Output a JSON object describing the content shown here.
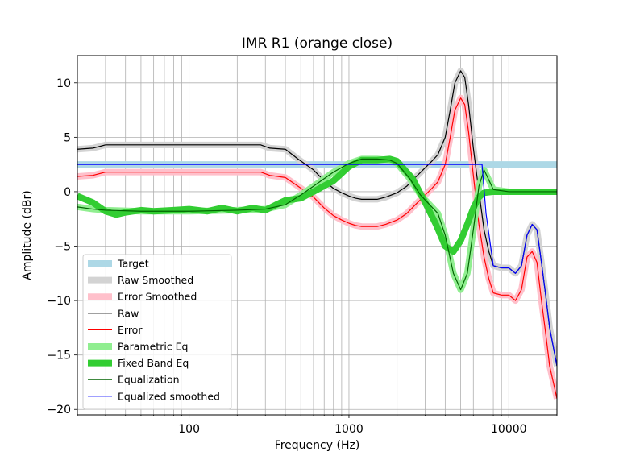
{
  "chart_data": {
    "type": "line",
    "title": "IMR R1 (orange close)",
    "xlabel": "Frequency (Hz)",
    "ylabel": "Amplitude (dBr)",
    "xscale": "log",
    "xlim": [
      20,
      20000
    ],
    "ylim": [
      -20.5,
      12.5
    ],
    "xticks": [
      {
        "value": 100,
        "label": "100"
      },
      {
        "value": 1000,
        "label": "1000"
      },
      {
        "value": 10000,
        "label": "10000"
      }
    ],
    "yticks": [
      {
        "value": 10,
        "label": "10"
      },
      {
        "value": 5,
        "label": "5"
      },
      {
        "value": 0,
        "label": "0"
      },
      {
        "value": -5,
        "label": "−5"
      },
      {
        "value": -10,
        "label": "−10"
      },
      {
        "value": -15,
        "label": "−15"
      },
      {
        "value": -20,
        "label": "−20"
      }
    ],
    "grid": true,
    "legend_position": "lower-left",
    "series": [
      {
        "name": "Target",
        "color": "#add8e6",
        "width": 8,
        "x": [
          20,
          20000
        ],
        "y": [
          2.5,
          2.5
        ]
      },
      {
        "name": "Raw Smoothed",
        "color": "#d3d3d3",
        "width": 8,
        "x": [
          20,
          25,
          30,
          50,
          100,
          200,
          280,
          320,
          400,
          480,
          600,
          700,
          800,
          900,
          1000,
          1100,
          1200,
          1500,
          1700,
          2000,
          2300,
          2600,
          3000,
          3300,
          3600,
          4000,
          4300,
          4600,
          5000,
          5300,
          5600,
          6000,
          6500,
          7000,
          7500,
          8000,
          9000,
          10000,
          11000,
          12000,
          13000,
          14000,
          15000,
          16000,
          17000,
          18000,
          20000
        ],
        "y": [
          3.9,
          4.0,
          4.3,
          4.3,
          4.3,
          4.3,
          4.3,
          4.0,
          3.9,
          3.0,
          2.0,
          1.0,
          0.3,
          -0.1,
          -0.4,
          -0.6,
          -0.7,
          -0.7,
          -0.5,
          -0.1,
          0.5,
          1.3,
          2.2,
          2.8,
          3.4,
          5.0,
          7.5,
          10.0,
          11.1,
          10.5,
          8.0,
          4.0,
          0.0,
          -3.5,
          -5.5,
          -6.8,
          -7.0,
          -7.0,
          -7.5,
          -6.8,
          -4.0,
          -3.0,
          -3.5,
          -6.5,
          -9.5,
          -12.5,
          -16.0
        ]
      },
      {
        "name": "Error Smoothed",
        "color": "#ffc0cb",
        "width": 8,
        "x": [
          20,
          25,
          30,
          50,
          100,
          200,
          280,
          320,
          400,
          480,
          600,
          700,
          800,
          900,
          1000,
          1100,
          1200,
          1500,
          1700,
          2000,
          2300,
          2600,
          3000,
          3300,
          3600,
          4000,
          4300,
          4600,
          5000,
          5300,
          5600,
          6000,
          6500,
          7000,
          7500,
          8000,
          9000,
          10000,
          11000,
          12000,
          13000,
          14000,
          15000,
          16000,
          17000,
          18000,
          20000
        ],
        "y": [
          1.4,
          1.5,
          1.8,
          1.8,
          1.8,
          1.8,
          1.8,
          1.5,
          1.3,
          0.5,
          -0.5,
          -1.5,
          -2.2,
          -2.6,
          -2.9,
          -3.1,
          -3.2,
          -3.2,
          -3.0,
          -2.6,
          -2.0,
          -1.2,
          -0.3,
          0.3,
          0.9,
          2.5,
          5.0,
          7.5,
          8.6,
          8.0,
          5.5,
          1.5,
          -3.0,
          -6.0,
          -8.0,
          -9.3,
          -9.5,
          -9.5,
          -10.0,
          -9.0,
          -6.0,
          -5.5,
          -6.5,
          -10.0,
          -13.0,
          -16.0,
          -19.0
        ]
      },
      {
        "name": "Raw",
        "color": "#000000",
        "width": 1.2,
        "x": [
          20,
          25,
          30,
          50,
          100,
          200,
          280,
          320,
          400,
          480,
          600,
          700,
          800,
          900,
          1000,
          1100,
          1200,
          1500,
          1700,
          2000,
          2300,
          2600,
          3000,
          3300,
          3600,
          4000,
          4300,
          4600,
          5000,
          5300,
          5600,
          6000,
          6500,
          7000,
          7500,
          8000,
          9000,
          10000,
          11000,
          12000,
          13000,
          14000,
          15000,
          16000,
          17000,
          18000,
          20000
        ],
        "y": [
          3.9,
          4.0,
          4.3,
          4.3,
          4.3,
          4.3,
          4.3,
          4.0,
          3.9,
          3.0,
          2.0,
          1.0,
          0.3,
          -0.1,
          -0.4,
          -0.6,
          -0.7,
          -0.7,
          -0.5,
          -0.1,
          0.5,
          1.3,
          2.2,
          2.8,
          3.4,
          5.0,
          7.5,
          10.0,
          11.1,
          10.5,
          8.0,
          4.0,
          0.0,
          -3.5,
          -5.5,
          -6.8,
          -7.0,
          -7.0,
          -7.5,
          -6.8,
          -4.0,
          -3.0,
          -3.5,
          -6.5,
          -9.5,
          -12.5,
          -16.0
        ]
      },
      {
        "name": "Error",
        "color": "#ff0000",
        "width": 1.2,
        "x": [
          20,
          25,
          30,
          50,
          100,
          200,
          280,
          320,
          400,
          480,
          600,
          700,
          800,
          900,
          1000,
          1100,
          1200,
          1500,
          1700,
          2000,
          2300,
          2600,
          3000,
          3300,
          3600,
          4000,
          4300,
          4600,
          5000,
          5300,
          5600,
          6000,
          6500,
          7000,
          7500,
          8000,
          9000,
          10000,
          11000,
          12000,
          13000,
          14000,
          15000,
          16000,
          17000,
          18000,
          20000
        ],
        "y": [
          1.4,
          1.5,
          1.8,
          1.8,
          1.8,
          1.8,
          1.8,
          1.5,
          1.3,
          0.5,
          -0.5,
          -1.5,
          -2.2,
          -2.6,
          -2.9,
          -3.1,
          -3.2,
          -3.2,
          -3.0,
          -2.6,
          -2.0,
          -1.2,
          -0.3,
          0.3,
          0.9,
          2.5,
          5.0,
          7.5,
          8.6,
          8.0,
          5.5,
          1.5,
          -3.0,
          -6.0,
          -8.0,
          -9.3,
          -9.5,
          -9.5,
          -10.0,
          -9.0,
          -6.0,
          -5.5,
          -6.5,
          -10.0,
          -13.0,
          -16.0,
          -19.0
        ]
      },
      {
        "name": "Parametric Eq",
        "color": "#90ee90",
        "width": 8,
        "x": [
          20,
          25,
          30,
          50,
          100,
          200,
          300,
          400,
          500,
          600,
          700,
          800,
          1000,
          1200,
          1500,
          1800,
          2000,
          2400,
          2800,
          3200,
          3600,
          4000,
          4500,
          5000,
          5500,
          6000,
          6500,
          7000,
          8000,
          10000,
          20000
        ],
        "y": [
          -1.4,
          -1.6,
          -1.7,
          -1.8,
          -1.8,
          -1.7,
          -1.6,
          -1.2,
          -0.3,
          0.5,
          1.2,
          1.8,
          2.6,
          3.0,
          3.0,
          2.9,
          2.6,
          1.2,
          -0.3,
          -1.2,
          -2.0,
          -4.0,
          -7.5,
          -9.0,
          -7.5,
          -3.5,
          0.5,
          2.0,
          0.2,
          0.0,
          0.0
        ]
      },
      {
        "name": "Fixed Band Eq",
        "color": "#32cd32",
        "width": 8,
        "x": [
          20,
          25,
          30,
          35,
          40,
          50,
          60,
          80,
          100,
          130,
          160,
          200,
          250,
          300,
          350,
          400,
          500,
          600,
          800,
          1000,
          1200,
          1500,
          1800,
          2000,
          2500,
          3000,
          3500,
          4000,
          4500,
          5000,
          5500,
          6000,
          6500,
          7000,
          8000,
          10000,
          20000
        ],
        "y": [
          -0.4,
          -1.0,
          -1.8,
          -2.1,
          -1.9,
          -1.7,
          -1.8,
          -1.7,
          -1.6,
          -1.8,
          -1.5,
          -1.8,
          -1.5,
          -1.7,
          -1.2,
          -0.8,
          -0.6,
          0.0,
          1.0,
          2.3,
          2.9,
          2.9,
          3.0,
          2.8,
          1.2,
          -1.0,
          -3.0,
          -5.0,
          -5.5,
          -4.5,
          -3.0,
          -1.5,
          -0.5,
          -0.1,
          0.0,
          0.0,
          0.0
        ]
      },
      {
        "name": "Equalization",
        "color": "#006400",
        "width": 1.2,
        "x": [
          20,
          25,
          30,
          50,
          100,
          200,
          300,
          400,
          500,
          600,
          700,
          800,
          1000,
          1200,
          1500,
          1800,
          2000,
          2400,
          2800,
          3200,
          3600,
          4000,
          4500,
          5000,
          5500,
          6000,
          6500,
          7000,
          8000,
          10000,
          20000
        ],
        "y": [
          -1.4,
          -1.6,
          -1.7,
          -1.8,
          -1.8,
          -1.7,
          -1.6,
          -1.2,
          -0.3,
          0.5,
          1.2,
          1.8,
          2.6,
          3.0,
          3.0,
          2.9,
          2.6,
          1.2,
          -0.3,
          -1.2,
          -2.0,
          -4.0,
          -7.5,
          -9.0,
          -7.5,
          -3.5,
          0.5,
          2.0,
          0.2,
          0.0,
          0.0
        ]
      },
      {
        "name": "Equalized smoothed",
        "color": "#0000ff",
        "width": 1.2,
        "x": [
          20,
          1000,
          5000,
          6800,
          7200,
          8000,
          9000,
          10000,
          11000,
          12000,
          13000,
          14000,
          15000,
          16000,
          17000,
          18000,
          20000
        ],
        "y": [
          2.5,
          2.5,
          2.5,
          2.5,
          -2.0,
          -6.8,
          -7.0,
          -7.0,
          -7.5,
          -6.8,
          -4.0,
          -3.0,
          -3.5,
          -6.5,
          -9.5,
          -12.5,
          -16.0
        ]
      }
    ]
  }
}
